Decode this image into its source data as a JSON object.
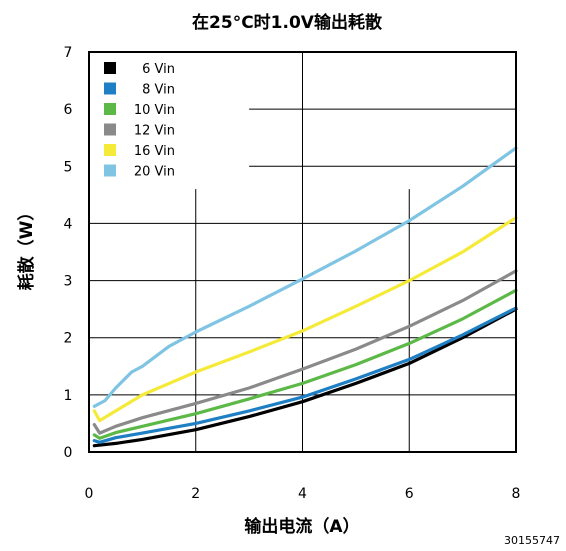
{
  "chart_data": {
    "type": "line",
    "title": "在25°C时1.0V输出耗散",
    "xlabel": "输出电流（A）",
    "ylabel": "耗散（W）",
    "xlim": [
      0,
      8
    ],
    "ylim": [
      0,
      7
    ],
    "xticks": [
      "0",
      "2",
      "4",
      "6",
      "8"
    ],
    "yticks": [
      "0",
      "1",
      "2",
      "3",
      "4",
      "5",
      "6",
      "7"
    ],
    "grid": true,
    "legend_position": "top-left",
    "figure_id": "30155747",
    "series": [
      {
        "name": "6 Vin",
        "color": "#000000",
        "x": [
          0.1,
          0.5,
          1,
          2,
          3,
          4,
          5,
          6,
          7,
          8
        ],
        "y": [
          0.11,
          0.15,
          0.22,
          0.39,
          0.62,
          0.88,
          1.2,
          1.55,
          2.0,
          2.5
        ]
      },
      {
        "name": "8 Vin",
        "color": "#1f7fc4",
        "x": [
          0.1,
          0.2,
          0.5,
          1,
          2,
          3,
          4,
          5,
          6,
          7,
          8
        ],
        "y": [
          0.2,
          0.17,
          0.25,
          0.33,
          0.5,
          0.72,
          0.96,
          1.28,
          1.62,
          2.05,
          2.52
        ]
      },
      {
        "name": "10 Vin",
        "color": "#5cb947",
        "x": [
          0.1,
          0.2,
          0.5,
          1,
          2,
          3,
          4,
          5,
          6,
          7,
          8
        ],
        "y": [
          0.3,
          0.24,
          0.34,
          0.45,
          0.67,
          0.93,
          1.2,
          1.53,
          1.9,
          2.33,
          2.83
        ]
      },
      {
        "name": "12 Vin",
        "color": "#8a8a8a",
        "x": [
          0.1,
          0.2,
          0.5,
          1,
          2,
          3,
          4,
          5,
          6,
          7,
          8
        ],
        "y": [
          0.48,
          0.33,
          0.45,
          0.6,
          0.85,
          1.12,
          1.45,
          1.8,
          2.2,
          2.65,
          3.17
        ]
      },
      {
        "name": "16 Vin",
        "color": "#f5ea38",
        "x": [
          0.1,
          0.2,
          0.5,
          1,
          2,
          3,
          4,
          5,
          6,
          7,
          8
        ],
        "y": [
          0.72,
          0.55,
          0.72,
          1.0,
          1.4,
          1.75,
          2.12,
          2.55,
          3.0,
          3.5,
          4.1
        ]
      },
      {
        "name": "20 Vin",
        "color": "#7fc4e3",
        "x": [
          0.1,
          0.3,
          0.5,
          0.8,
          1,
          1.5,
          2,
          3,
          4,
          5,
          6,
          7,
          8
        ],
        "y": [
          0.8,
          0.9,
          1.12,
          1.4,
          1.5,
          1.85,
          2.1,
          2.55,
          3.03,
          3.52,
          4.05,
          4.65,
          5.32
        ]
      }
    ]
  }
}
